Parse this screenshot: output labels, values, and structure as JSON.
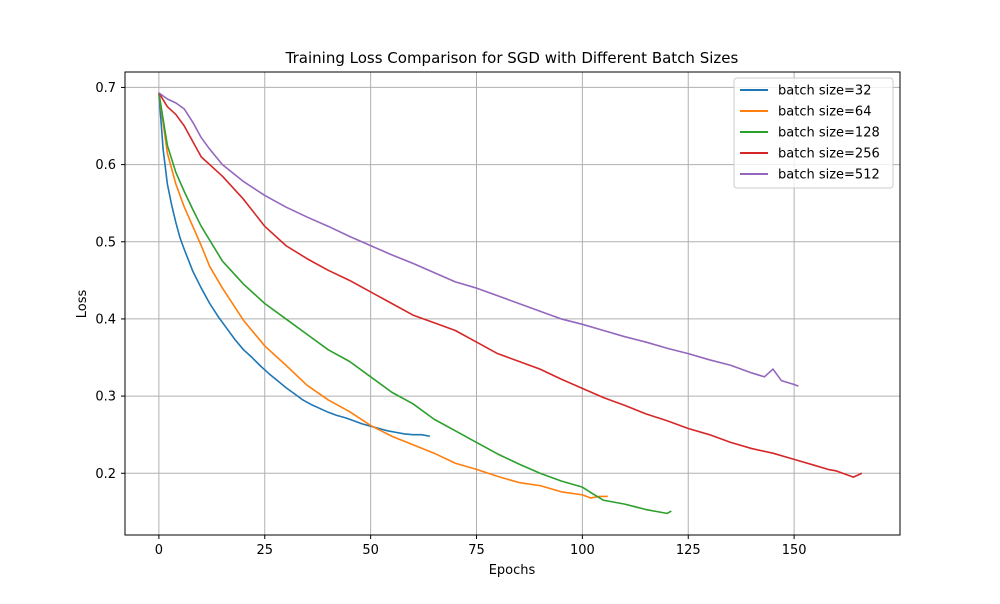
{
  "chart_data": {
    "type": "line",
    "title": "Training Loss Comparison for SGD with Different Batch Sizes",
    "xlabel": "Epochs",
    "ylabel": "Loss",
    "xlim": [
      -8,
      175
    ],
    "ylim": [
      0.12,
      0.72
    ],
    "xticks": [
      0,
      25,
      50,
      75,
      100,
      125,
      150
    ],
    "yticks": [
      0.2,
      0.3,
      0.4,
      0.5,
      0.6,
      0.7
    ],
    "xtick_labels": [
      "0",
      "25",
      "50",
      "75",
      "100",
      "125",
      "150"
    ],
    "ytick_labels": [
      "0.2",
      "0.3",
      "0.4",
      "0.5",
      "0.6",
      "0.7"
    ],
    "grid": true,
    "legend_position": "top-right",
    "series": [
      {
        "name": "batch size=32",
        "color": "#1f77b4",
        "x": [
          0,
          1,
          2,
          3,
          4,
          5,
          6,
          8,
          10,
          12,
          14,
          16,
          18,
          20,
          22,
          24,
          26,
          28,
          30,
          32,
          34,
          36,
          38,
          40,
          42,
          44,
          46,
          48,
          50,
          52,
          54,
          56,
          58,
          60,
          62,
          64
        ],
        "y": [
          0.693,
          0.62,
          0.575,
          0.548,
          0.525,
          0.505,
          0.49,
          0.462,
          0.44,
          0.42,
          0.403,
          0.388,
          0.373,
          0.36,
          0.35,
          0.339,
          0.329,
          0.32,
          0.311,
          0.303,
          0.295,
          0.289,
          0.284,
          0.279,
          0.275,
          0.272,
          0.268,
          0.264,
          0.261,
          0.258,
          0.255,
          0.253,
          0.251,
          0.25,
          0.25,
          0.248
        ]
      },
      {
        "name": "batch size=64",
        "color": "#ff7f0e",
        "x": [
          0,
          2,
          4,
          6,
          8,
          10,
          12,
          15,
          20,
          25,
          30,
          35,
          40,
          45,
          50,
          55,
          60,
          65,
          70,
          75,
          80,
          85,
          90,
          95,
          100,
          102,
          104,
          106
        ],
        "y": [
          0.693,
          0.615,
          0.575,
          0.545,
          0.52,
          0.495,
          0.468,
          0.44,
          0.398,
          0.365,
          0.34,
          0.314,
          0.295,
          0.28,
          0.262,
          0.248,
          0.237,
          0.226,
          0.213,
          0.205,
          0.196,
          0.188,
          0.184,
          0.176,
          0.172,
          0.168,
          0.17,
          0.17
        ]
      },
      {
        "name": "batch size=128",
        "color": "#2ca02c",
        "x": [
          0,
          2,
          4,
          6,
          8,
          10,
          15,
          20,
          25,
          30,
          35,
          40,
          45,
          50,
          55,
          60,
          65,
          70,
          75,
          80,
          85,
          90,
          95,
          100,
          102,
          105,
          110,
          115,
          118,
          120,
          121
        ],
        "y": [
          0.693,
          0.625,
          0.59,
          0.565,
          0.542,
          0.52,
          0.475,
          0.445,
          0.42,
          0.4,
          0.38,
          0.36,
          0.345,
          0.325,
          0.305,
          0.29,
          0.27,
          0.255,
          0.24,
          0.225,
          0.212,
          0.2,
          0.19,
          0.182,
          0.175,
          0.165,
          0.16,
          0.153,
          0.15,
          0.148,
          0.151
        ]
      },
      {
        "name": "batch size=256",
        "color": "#d62728",
        "x": [
          0,
          2,
          4,
          6,
          8,
          10,
          15,
          20,
          25,
          30,
          35,
          40,
          45,
          50,
          55,
          60,
          65,
          70,
          75,
          80,
          85,
          90,
          95,
          100,
          105,
          110,
          115,
          120,
          125,
          130,
          135,
          140,
          145,
          150,
          155,
          158,
          160,
          164,
          166
        ],
        "y": [
          0.693,
          0.675,
          0.665,
          0.65,
          0.63,
          0.61,
          0.585,
          0.555,
          0.52,
          0.495,
          0.478,
          0.463,
          0.45,
          0.435,
          0.42,
          0.405,
          0.395,
          0.385,
          0.37,
          0.355,
          0.345,
          0.335,
          0.322,
          0.31,
          0.298,
          0.288,
          0.277,
          0.268,
          0.258,
          0.25,
          0.24,
          0.232,
          0.226,
          0.218,
          0.21,
          0.205,
          0.203,
          0.195,
          0.2
        ]
      },
      {
        "name": "batch size=512",
        "color": "#9467bd",
        "x": [
          0,
          2,
          4,
          6,
          8,
          10,
          12,
          15,
          20,
          25,
          30,
          35,
          40,
          45,
          50,
          55,
          60,
          65,
          70,
          75,
          80,
          85,
          90,
          95,
          100,
          105,
          110,
          115,
          120,
          125,
          130,
          135,
          140,
          143,
          145,
          147,
          150,
          151
        ],
        "y": [
          0.693,
          0.685,
          0.68,
          0.672,
          0.655,
          0.635,
          0.62,
          0.6,
          0.578,
          0.56,
          0.545,
          0.532,
          0.52,
          0.507,
          0.495,
          0.483,
          0.472,
          0.46,
          0.448,
          0.44,
          0.43,
          0.42,
          0.41,
          0.4,
          0.393,
          0.385,
          0.377,
          0.37,
          0.362,
          0.355,
          0.347,
          0.34,
          0.33,
          0.325,
          0.335,
          0.32,
          0.315,
          0.313
        ]
      }
    ]
  }
}
